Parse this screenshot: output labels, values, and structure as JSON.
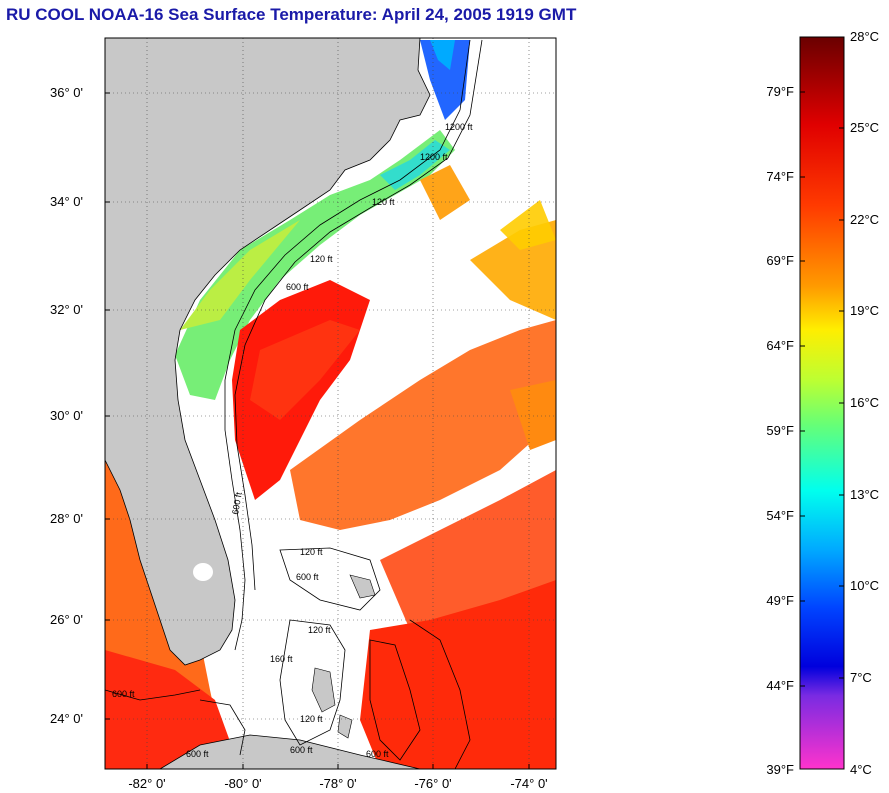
{
  "title": "RU COOL  NOAA-16  Sea Surface Temperature:  April 24, 2005 1919 GMT",
  "map": {
    "lat_ticks": [
      "36° 0'",
      "34° 0'",
      "32° 0'",
      "30° 0'",
      "28° 0'",
      "26° 0'",
      "24° 0'"
    ],
    "lon_ticks": [
      "-82° 0'",
      "-80° 0'",
      "-78° 0'",
      "-76° 0'",
      "-74° 0'"
    ],
    "land_color": "#c8c8c8",
    "cloud_color": "#ffffff",
    "contour_labels": [
      "120 ft",
      "600 ft",
      "1200 ft",
      "120 ft",
      "600 ft",
      "120 ft",
      "600 ft",
      "1200 ft",
      "600 ft",
      "120 ft",
      "160 ft",
      "120 ft",
      "600 ft",
      "600 ft",
      "600 ft"
    ]
  },
  "colorbar": {
    "fahrenheit": [
      "79°F",
      "74°F",
      "69°F",
      "64°F",
      "59°F",
      "54°F",
      "49°F",
      "44°F",
      "39°F"
    ],
    "celsius": [
      "28°C",
      "25°C",
      "22°C",
      "19°C",
      "16°C",
      "13°C",
      "10°C",
      "7°C",
      "4°C"
    ],
    "stops": [
      "#7a0000",
      "#c00000",
      "#ff1a00",
      "#ff5a00",
      "#ff9a00",
      "#ffe000",
      "#ccff33",
      "#55ff88",
      "#00ffee",
      "#00aaff",
      "#0044ff",
      "#0000dd",
      "#8a2be2",
      "#ff33cc"
    ]
  }
}
